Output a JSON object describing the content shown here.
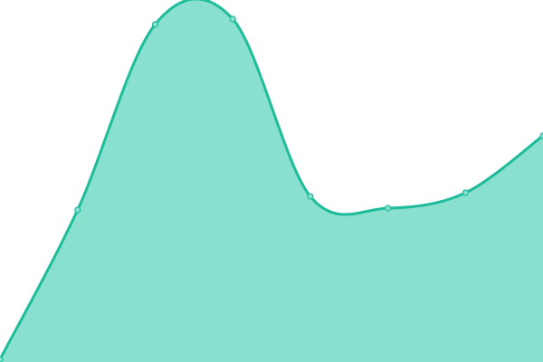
{
  "chart_data": {
    "type": "area",
    "x": [
      0,
      1,
      2,
      3,
      4,
      5,
      6,
      7
    ],
    "values": [
      3,
      168,
      373,
      379,
      183,
      170,
      187,
      250
    ],
    "ylim": [
      0,
      400
    ],
    "grid": false,
    "axes": false,
    "legend": "none",
    "colors": {
      "fill": "#89e0cf",
      "line": "#1fbc9c",
      "point": "#89e0cf"
    }
  }
}
